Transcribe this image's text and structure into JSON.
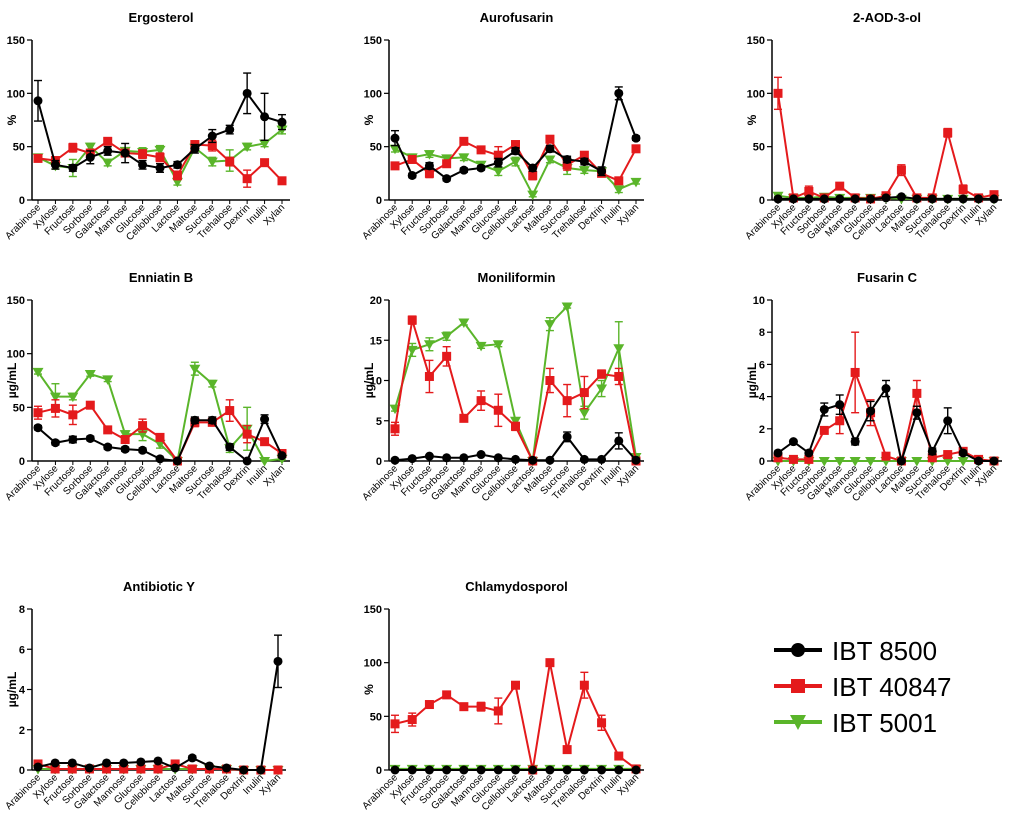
{
  "categories": [
    "Arabinose",
    "Xylose",
    "Fructose",
    "Sorbose",
    "Galactose",
    "Mannose",
    "Glucose",
    "Cellobiose",
    "Lactose",
    "Maltose",
    "Sucrose",
    "Trehalose",
    "Dextrin",
    "Inulin",
    "Xylan"
  ],
  "series_meta": [
    {
      "name": "IBT 8500",
      "color": "#000000",
      "marker": "circle"
    },
    {
      "name": "IBT 40847",
      "color": "#e41a1c",
      "marker": "square"
    },
    {
      "name": "IBT 5001",
      "color": "#5ab52a",
      "marker": "triangle-down"
    }
  ],
  "chart_data": [
    {
      "type": "line",
      "title": "Ergosterol",
      "ylabel": "%",
      "ylim": [
        0,
        150
      ],
      "yticks": [
        0,
        50,
        100,
        150
      ],
      "series": [
        {
          "name": "IBT 8500",
          "values": [
            93,
            33,
            30,
            40,
            46,
            44,
            33,
            30,
            33,
            48,
            60,
            66,
            100,
            78,
            73
          ],
          "errors": [
            19,
            4,
            3,
            6,
            4,
            9,
            4,
            4,
            3,
            4,
            6,
            4,
            19,
            22,
            7
          ]
        },
        {
          "name": "IBT 40847",
          "values": [
            39,
            37,
            49,
            44,
            55,
            44,
            43,
            40,
            23,
            52,
            51,
            36,
            20,
            35,
            18
          ],
          "errors": [
            3,
            3,
            4,
            3,
            3,
            3,
            4,
            4,
            4,
            3,
            5,
            4,
            8,
            3,
            2
          ]
        },
        {
          "name": "IBT 5001",
          "values": [
            40,
            32,
            30,
            50,
            35,
            46,
            45,
            47,
            17,
            49,
            36,
            37,
            50,
            53,
            66
          ],
          "errors": [
            3,
            3,
            8,
            3,
            3,
            3,
            4,
            4,
            3,
            3,
            4,
            10,
            3,
            3,
            4
          ]
        }
      ]
    },
    {
      "type": "line",
      "title": "Aurofusarin",
      "ylabel": "%",
      "ylim": [
        0,
        150
      ],
      "yticks": [
        0,
        50,
        100,
        150
      ],
      "series": [
        {
          "name": "IBT 8500",
          "values": [
            58,
            23,
            32,
            20,
            28,
            30,
            35,
            46,
            30,
            48,
            38,
            36,
            27,
            100,
            58
          ],
          "errors": [
            7,
            2,
            3,
            2,
            2,
            2,
            4,
            3,
            3,
            3,
            3,
            3,
            4,
            6,
            2
          ]
        },
        {
          "name": "IBT 40847",
          "values": [
            32,
            38,
            25,
            34,
            55,
            47,
            42,
            52,
            23,
            57,
            33,
            42,
            25,
            18,
            48
          ],
          "errors": [
            3,
            3,
            4,
            3,
            3,
            3,
            8,
            3,
            4,
            3,
            5,
            3,
            3,
            3,
            2
          ]
        },
        {
          "name": "IBT 5001",
          "values": [
            48,
            40,
            43,
            39,
            40,
            33,
            27,
            36,
            5,
            38,
            30,
            28,
            27,
            10,
            17
          ],
          "errors": [
            3,
            3,
            3,
            3,
            3,
            3,
            4,
            4,
            2,
            3,
            6,
            3,
            3,
            3,
            2
          ]
        }
      ]
    },
    {
      "type": "line",
      "title": "2-AOD-3-ol",
      "ylabel": "%",
      "ylim": [
        0,
        150
      ],
      "yticks": [
        0,
        50,
        100,
        150
      ],
      "series": [
        {
          "name": "IBT 8500",
          "values": [
            1,
            1,
            1,
            1,
            1,
            1,
            1,
            2,
            3,
            1,
            1,
            1,
            1,
            1,
            1
          ],
          "errors": [
            0,
            0,
            0,
            0,
            0,
            0,
            0,
            0,
            0,
            0,
            0,
            0,
            0,
            0,
            0
          ]
        },
        {
          "name": "IBT 40847",
          "values": [
            100,
            2,
            8,
            2,
            13,
            2,
            1,
            4,
            28,
            2,
            2,
            63,
            10,
            2,
            5
          ],
          "errors": [
            15,
            1,
            5,
            1,
            2,
            1,
            1,
            2,
            5,
            1,
            1,
            4,
            4,
            1,
            2
          ]
        },
        {
          "name": "IBT 5001",
          "values": [
            4,
            2,
            2,
            3,
            2,
            2,
            2,
            2,
            1,
            1,
            1,
            1,
            1,
            1,
            1
          ],
          "errors": [
            1,
            0,
            0,
            0,
            0,
            0,
            0,
            0,
            0,
            0,
            0,
            0,
            0,
            0,
            0
          ]
        }
      ]
    },
    {
      "type": "line",
      "title": "Enniatin B",
      "ylabel": "µg/mL",
      "ylim": [
        0,
        150
      ],
      "yticks": [
        0,
        50,
        100,
        150
      ],
      "series": [
        {
          "name": "IBT 8500",
          "values": [
            31,
            17,
            20,
            21,
            13,
            11,
            10,
            2,
            0,
            38,
            38,
            13,
            0,
            39,
            5
          ],
          "errors": [
            2,
            2,
            3,
            2,
            2,
            2,
            2,
            1,
            0,
            3,
            3,
            3,
            1,
            4,
            1
          ]
        },
        {
          "name": "IBT 40847",
          "values": [
            45,
            49,
            43,
            52,
            29,
            20,
            33,
            22,
            0,
            36,
            36,
            47,
            25,
            18,
            7
          ],
          "errors": [
            6,
            8,
            9,
            3,
            3,
            3,
            6,
            3,
            0,
            4,
            3,
            10,
            8,
            2,
            2
          ]
        },
        {
          "name": "IBT 5001",
          "values": [
            83,
            60,
            60,
            81,
            76,
            25,
            25,
            16,
            0,
            86,
            72,
            12,
            30,
            0,
            2
          ],
          "errors": [
            2,
            12,
            3,
            2,
            2,
            3,
            6,
            4,
            0,
            6,
            3,
            4,
            20,
            2,
            1
          ]
        }
      ]
    },
    {
      "type": "line",
      "title": "Moniliformin",
      "ylabel": "µg/mL",
      "ylim": [
        0,
        20
      ],
      "yticks": [
        0,
        5,
        10,
        15,
        20
      ],
      "series": [
        {
          "name": "IBT 8500",
          "values": [
            0.1,
            0.3,
            0.6,
            0.4,
            0.4,
            0.8,
            0.4,
            0.2,
            0.1,
            0.1,
            3.0,
            0.2,
            0.2,
            2.5,
            0.1
          ],
          "errors": [
            0.1,
            0.1,
            0.1,
            0.1,
            0.1,
            0.1,
            0.1,
            0.1,
            0.1,
            0.1,
            0.6,
            0.1,
            0.1,
            1.0,
            0.1
          ]
        },
        {
          "name": "IBT 40847",
          "values": [
            4.0,
            17.5,
            10.5,
            13.0,
            5.3,
            7.5,
            6.3,
            4.3,
            0.0,
            10.0,
            7.5,
            8.5,
            10.8,
            10.5,
            0.0
          ],
          "errors": [
            0.8,
            0.5,
            2.0,
            1.2,
            0.3,
            1.2,
            2.0,
            0.5,
            0.1,
            1.5,
            2.0,
            2.0,
            0.5,
            1.0,
            0.1
          ]
        },
        {
          "name": "IBT 5001",
          "values": [
            6.5,
            13.8,
            14.5,
            15.5,
            17.2,
            14.3,
            14.5,
            5.0,
            0.0,
            17.0,
            19.2,
            6.0,
            9.0,
            14.0,
            0.5
          ],
          "errors": [
            0.3,
            0.8,
            0.8,
            0.5,
            0.3,
            0.3,
            0.3,
            0.3,
            0.1,
            0.8,
            0.2,
            0.8,
            1.0,
            3.3,
            0.1
          ]
        }
      ]
    },
    {
      "type": "line",
      "title": "Fusarin C",
      "ylabel": "µg/mL",
      "ylim": [
        0,
        10
      ],
      "yticks": [
        0,
        2,
        4,
        6,
        8,
        10
      ],
      "series": [
        {
          "name": "IBT 8500",
          "values": [
            0.5,
            1.2,
            0.5,
            3.2,
            3.5,
            1.2,
            3.1,
            4.5,
            0.0,
            3.0,
            0.6,
            2.5,
            0.5,
            0.0,
            0.0
          ],
          "errors": [
            0.1,
            0.1,
            0.1,
            0.4,
            0.6,
            0.2,
            0.6,
            0.5,
            0.1,
            0.4,
            0.2,
            0.8,
            0.1,
            0.1,
            0.1
          ]
        },
        {
          "name": "IBT 40847",
          "values": [
            0.2,
            0.1,
            0.1,
            1.9,
            2.5,
            5.5,
            3.0,
            0.3,
            0.0,
            4.2,
            0.2,
            0.4,
            0.6,
            0.1,
            0.0
          ],
          "errors": [
            0.1,
            0.1,
            0.1,
            0.2,
            0.8,
            2.5,
            0.8,
            0.1,
            0.1,
            0.8,
            0.1,
            0.1,
            0.1,
            0.1,
            0.1
          ]
        },
        {
          "name": "IBT 5001",
          "values": [
            0,
            0,
            0,
            0,
            0,
            0,
            0,
            0,
            0,
            0,
            0,
            0,
            0,
            0,
            0
          ],
          "errors": [
            0,
            0,
            0,
            0,
            0,
            0,
            0,
            0,
            0,
            0,
            0,
            0,
            0,
            0,
            0
          ]
        }
      ]
    },
    {
      "type": "line",
      "title": "Antibiotic Y",
      "ylabel": "µg/mL",
      "ylim": [
        0,
        8
      ],
      "yticks": [
        0,
        2,
        4,
        6,
        8
      ],
      "series": [
        {
          "name": "IBT 8500",
          "values": [
            0.15,
            0.35,
            0.35,
            0.1,
            0.35,
            0.35,
            0.4,
            0.45,
            0.1,
            0.6,
            0.2,
            0.1,
            0.0,
            0.0,
            5.4
          ],
          "errors": [
            0.05,
            0.05,
            0.05,
            0.05,
            0.05,
            0.05,
            0.05,
            0.05,
            0.05,
            0.1,
            0.05,
            0.05,
            0,
            0,
            1.3
          ]
        },
        {
          "name": "IBT 40847",
          "values": [
            0.3,
            0.05,
            0.05,
            0.05,
            0.05,
            0.05,
            0.05,
            0.05,
            0.3,
            0.05,
            0.05,
            0.05,
            0.0,
            0.0,
            0.0
          ],
          "errors": [
            0.05,
            0,
            0,
            0,
            0,
            0,
            0,
            0,
            0.05,
            0,
            0,
            0,
            0,
            0,
            0
          ]
        },
        {
          "name": "IBT 5001",
          "values": [
            0.05,
            0.05,
            0.05,
            0.05,
            0.05,
            0.05,
            0.05,
            0.05,
            0.05,
            0.05,
            0.05,
            0.05,
            0.0,
            0.0,
            0.0
          ],
          "errors": [
            0,
            0,
            0,
            0,
            0,
            0,
            0,
            0,
            0,
            0,
            0,
            0,
            0,
            0,
            0
          ]
        }
      ]
    },
    {
      "type": "line",
      "title": "Chlamydosporol",
      "ylabel": "%",
      "ylim": [
        0,
        150
      ],
      "yticks": [
        0,
        50,
        100,
        150
      ],
      "series": [
        {
          "name": "IBT 8500",
          "values": [
            0,
            0,
            0,
            0,
            0,
            0,
            0,
            0,
            0,
            0,
            0,
            0,
            0,
            0,
            0
          ],
          "errors": [
            0,
            0,
            0,
            0,
            0,
            0,
            0,
            0,
            0,
            0,
            0,
            0,
            0,
            0,
            0
          ]
        },
        {
          "name": "IBT 40847",
          "values": [
            43,
            47,
            61,
            70,
            59,
            59,
            55,
            79,
            0,
            100,
            19,
            79,
            44,
            13,
            1
          ],
          "errors": [
            8,
            6,
            3,
            3,
            3,
            4,
            12,
            3,
            0,
            3,
            3,
            12,
            7,
            2,
            1
          ]
        },
        {
          "name": "IBT 5001",
          "values": [
            1,
            1,
            1,
            1,
            1,
            1,
            1,
            1,
            1,
            1,
            1,
            1,
            1,
            1,
            1
          ],
          "errors": [
            0,
            0,
            0,
            0,
            0,
            0,
            0,
            0,
            0,
            0,
            0,
            0,
            0,
            0,
            0
          ]
        }
      ]
    }
  ]
}
